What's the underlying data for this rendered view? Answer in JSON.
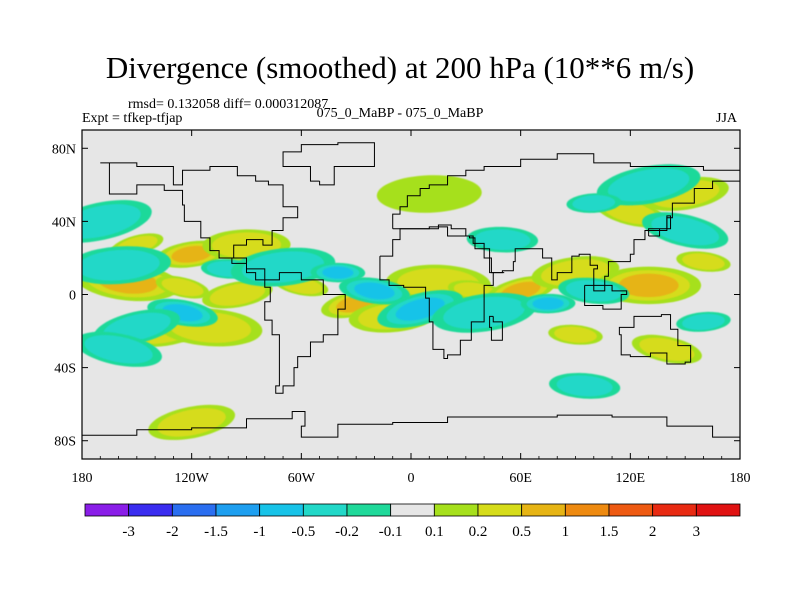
{
  "header": {
    "title": "Divergence (smoothed) at 200 hPa (10**6 m/s)",
    "stats": "rmsd= 0.132058 diff= 0.000312087",
    "experiment": "Expt = tfkep-tfjap",
    "cases": "075_0_MaBP - 075_0_MaBP",
    "season": "JJA"
  },
  "chart_data": {
    "type": "heatmap",
    "title": "Divergence (smoothed) at 200 hPa (10**6 m/s)",
    "x": {
      "range": [
        -180,
        180
      ],
      "ticks": [
        -180,
        -120,
        -60,
        0,
        60,
        120,
        180
      ],
      "tick_labels": [
        "180",
        "120W",
        "60W",
        "0",
        "60E",
        "120E",
        "180"
      ]
    },
    "y": {
      "range": [
        -90,
        90
      ],
      "ticks": [
        80,
        40,
        0,
        -40,
        -80
      ],
      "tick_labels": [
        "80N",
        "40N",
        "0",
        "40S",
        "80S"
      ]
    },
    "colorbar": {
      "labels": [
        "-3",
        "-2",
        "-1.5",
        "-1",
        "-0.5",
        "-0.2",
        "-0.1",
        "0.1",
        "0.2",
        "0.5",
        "1",
        "1.5",
        "2",
        "3"
      ],
      "levels": [
        -3,
        -2,
        -1.5,
        -1,
        -0.5,
        -0.2,
        -0.1,
        0.1,
        0.2,
        0.5,
        1,
        1.5,
        2,
        3
      ],
      "colors": [
        "#8a1ee8",
        "#3a2df0",
        "#2a6ef0",
        "#1e9ff0",
        "#17c3e8",
        "#22d8c8",
        "#1fd99a",
        "#e6e6e6",
        "#a6e01c",
        "#d6dc1a",
        "#e6b414",
        "#ee8a10",
        "#ee5a12",
        "#e82a12",
        "#e01212"
      ]
    },
    "features": [
      {
        "lon": -150,
        "lat": 27,
        "value": 0.3
      },
      {
        "lon": -120,
        "lat": 22,
        "value": 0.35
      },
      {
        "lon": -90,
        "lat": 27,
        "value": 0.3
      },
      {
        "lon": -155,
        "lat": 7,
        "value": 0.35
      },
      {
        "lon": -125,
        "lat": 4,
        "value": 0.3
      },
      {
        "lon": -95,
        "lat": 0,
        "value": 0.25
      },
      {
        "lon": -140,
        "lat": -20,
        "value": 0.25
      },
      {
        "lon": -110,
        "lat": -18,
        "value": 0.3
      },
      {
        "lon": -60,
        "lat": 5,
        "value": 0.3
      },
      {
        "lon": -30,
        "lat": -5,
        "value": 0.35
      },
      {
        "lon": -10,
        "lat": -12,
        "value": 0.3
      },
      {
        "lon": 15,
        "lat": 6,
        "value": 0.25
      },
      {
        "lon": 35,
        "lat": 2,
        "value": 0.3
      },
      {
        "lon": 60,
        "lat": 2,
        "value": 0.4
      },
      {
        "lon": 90,
        "lat": 12,
        "value": 0.3
      },
      {
        "lon": 130,
        "lat": 5,
        "value": 0.35
      },
      {
        "lon": 160,
        "lat": 18,
        "value": 0.3
      },
      {
        "lon": 120,
        "lat": 45,
        "value": 0.2
      },
      {
        "lon": 150,
        "lat": 55,
        "value": 0.2
      },
      {
        "lon": 10,
        "lat": 55,
        "value": 0.15
      },
      {
        "lon": 90,
        "lat": -22,
        "value": 0.25
      },
      {
        "lon": 140,
        "lat": -30,
        "value": 0.2
      },
      {
        "lon": -120,
        "lat": -70,
        "value": 0.2
      },
      {
        "lon": -160,
        "lat": 16,
        "value": -0.3
      },
      {
        "lon": -100,
        "lat": 14,
        "value": -0.3
      },
      {
        "lon": -125,
        "lat": -10,
        "value": -0.35
      },
      {
        "lon": -150,
        "lat": -18,
        "value": -0.3
      },
      {
        "lon": -70,
        "lat": 15,
        "value": -0.3
      },
      {
        "lon": -40,
        "lat": 12,
        "value": -0.35
      },
      {
        "lon": -20,
        "lat": 2,
        "value": -0.4
      },
      {
        "lon": 5,
        "lat": -8,
        "value": -0.35
      },
      {
        "lon": 40,
        "lat": -10,
        "value": -0.3
      },
      {
        "lon": 75,
        "lat": -5,
        "value": -0.35
      },
      {
        "lon": 100,
        "lat": 2,
        "value": -0.3
      },
      {
        "lon": 150,
        "lat": 35,
        "value": -0.3
      },
      {
        "lon": 130,
        "lat": 60,
        "value": -0.25
      },
      {
        "lon": 100,
        "lat": 50,
        "value": -0.2
      },
      {
        "lon": 95,
        "lat": -50,
        "value": -0.25
      },
      {
        "lon": -160,
        "lat": -30,
        "value": -0.25
      },
      {
        "lon": -170,
        "lat": 40,
        "value": -0.2
      },
      {
        "lon": 160,
        "lat": -15,
        "value": -0.3
      },
      {
        "lon": 50,
        "lat": 30,
        "value": -0.2
      }
    ],
    "grid": false
  }
}
